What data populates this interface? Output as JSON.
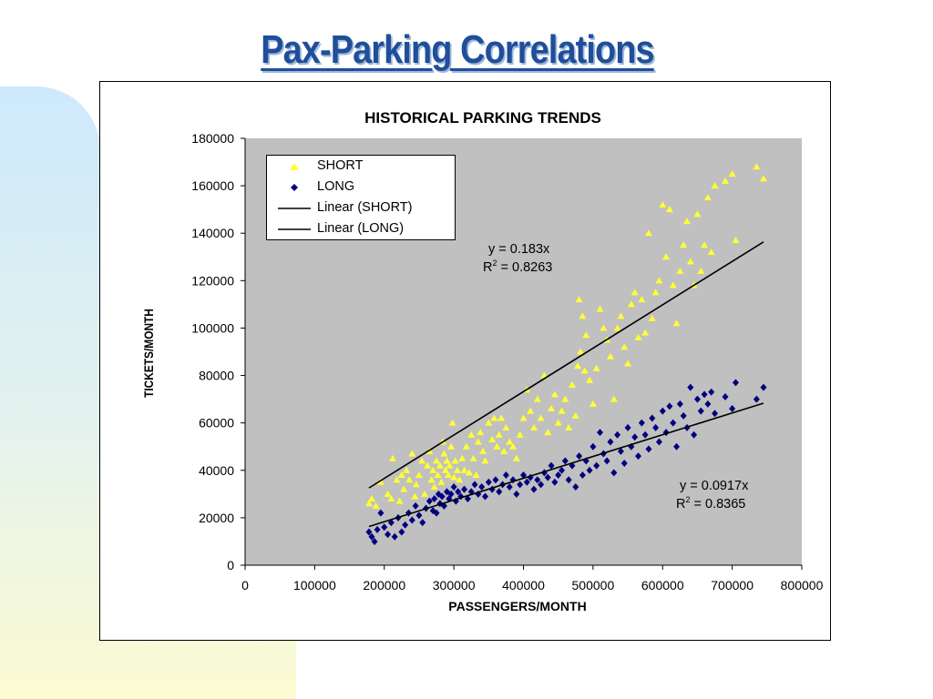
{
  "slide": {
    "title": "Pax-Parking Correlations"
  },
  "colors": {
    "title": "#1f4e9a",
    "plot_area": "#c0c0c0",
    "short": "#ffff33",
    "long": "#000080",
    "trend": "#000000",
    "deco_blue": "#cce8fb",
    "deco_yellow": "#fbfbd4"
  },
  "chart_data": {
    "type": "scatter",
    "title": "HISTORICAL PARKING TRENDS",
    "xlabel": "PASSENGERS/MONTH",
    "ylabel": "TICKETS/MONTH",
    "xlim": [
      0,
      800000
    ],
    "ylim": [
      0,
      180000
    ],
    "x_ticks": [
      "0",
      "100000",
      "200000",
      "300000",
      "400000",
      "500000",
      "600000",
      "700000",
      "800000"
    ],
    "y_ticks": [
      "0",
      "20000",
      "40000",
      "60000",
      "80000",
      "100000",
      "120000",
      "140000",
      "160000",
      "180000"
    ],
    "grid": false,
    "legend_position": "top-left",
    "legend": [
      "SHORT",
      "LONG",
      "Linear (SHORT)",
      "Linear (LONG)"
    ],
    "series": [
      {
        "name": "SHORT",
        "marker": "triangle",
        "x": [
          178000,
          182000,
          188000,
          195000,
          205000,
          210000,
          212000,
          218000,
          222000,
          225000,
          228000,
          232000,
          236000,
          240000,
          244000,
          246000,
          250000,
          254000,
          258000,
          262000,
          265000,
          268000,
          270000,
          272000,
          275000,
          277000,
          280000,
          282000,
          284000,
          286000,
          288000,
          290000,
          292000,
          294000,
          296000,
          298000,
          300000,
          302000,
          305000,
          308000,
          312000,
          315000,
          318000,
          322000,
          325000,
          328000,
          332000,
          335000,
          338000,
          342000,
          345000,
          350000,
          355000,
          358000,
          362000,
          365000,
          368000,
          372000,
          375000,
          380000,
          385000,
          390000,
          395000,
          400000,
          405000,
          410000,
          415000,
          420000,
          425000,
          430000,
          435000,
          440000,
          445000,
          450000,
          455000,
          460000,
          465000,
          470000,
          475000,
          478000,
          480000,
          482000,
          485000,
          488000,
          490000,
          495000,
          500000,
          505000,
          510000,
          515000,
          520000,
          525000,
          530000,
          535000,
          540000,
          545000,
          550000,
          555000,
          560000,
          565000,
          570000,
          575000,
          580000,
          585000,
          590000,
          595000,
          600000,
          605000,
          610000,
          615000,
          620000,
          625000,
          630000,
          635000,
          640000,
          645000,
          650000,
          655000,
          660000,
          665000,
          670000,
          675000,
          690000,
          700000,
          705000,
          735000,
          745000
        ],
        "y": [
          26000,
          28000,
          25000,
          35000,
          30000,
          28000,
          45000,
          36000,
          27000,
          38000,
          32000,
          40000,
          36000,
          47000,
          29000,
          34000,
          38000,
          44000,
          30000,
          42000,
          48000,
          36000,
          40000,
          33000,
          44000,
          38000,
          42000,
          35000,
          52000,
          47000,
          40000,
          44000,
          38000,
          42000,
          50000,
          60000,
          37000,
          44000,
          40000,
          36000,
          45000,
          40000,
          50000,
          39000,
          55000,
          45000,
          38000,
          52000,
          56000,
          48000,
          44000,
          60000,
          53000,
          62000,
          50000,
          55000,
          62000,
          48000,
          58000,
          52000,
          50000,
          45000,
          55000,
          62000,
          74000,
          65000,
          58000,
          70000,
          62000,
          80000,
          56000,
          66000,
          72000,
          60000,
          65000,
          70000,
          58000,
          76000,
          63000,
          84000,
          112000,
          90000,
          105000,
          82000,
          97000,
          78000,
          68000,
          83000,
          108000,
          100000,
          95000,
          88000,
          70000,
          100000,
          105000,
          92000,
          85000,
          110000,
          115000,
          96000,
          112000,
          98000,
          140000,
          104000,
          115000,
          120000,
          152000,
          130000,
          150000,
          118000,
          102000,
          124000,
          135000,
          145000,
          128000,
          118000,
          148000,
          124000,
          135000,
          155000,
          132000,
          160000,
          162000,
          165000,
          137000,
          168000,
          163000
        ]
      },
      {
        "name": "LONG",
        "marker": "diamond",
        "x": [
          178000,
          182000,
          186000,
          190000,
          195000,
          200000,
          205000,
          210000,
          215000,
          220000,
          225000,
          230000,
          235000,
          240000,
          245000,
          250000,
          255000,
          260000,
          265000,
          270000,
          272000,
          275000,
          278000,
          280000,
          283000,
          286000,
          290000,
          293000,
          296000,
          300000,
          303000,
          306000,
          310000,
          315000,
          320000,
          325000,
          330000,
          335000,
          340000,
          345000,
          350000,
          355000,
          360000,
          365000,
          370000,
          375000,
          380000,
          385000,
          390000,
          395000,
          400000,
          405000,
          410000,
          415000,
          420000,
          425000,
          430000,
          435000,
          440000,
          445000,
          450000,
          455000,
          460000,
          465000,
          470000,
          475000,
          480000,
          485000,
          490000,
          495000,
          500000,
          505000,
          510000,
          515000,
          520000,
          525000,
          530000,
          535000,
          540000,
          545000,
          550000,
          555000,
          560000,
          565000,
          570000,
          575000,
          580000,
          585000,
          590000,
          595000,
          600000,
          605000,
          610000,
          615000,
          620000,
          625000,
          630000,
          635000,
          640000,
          645000,
          650000,
          655000,
          660000,
          665000,
          670000,
          675000,
          690000,
          700000,
          705000,
          735000,
          745000
        ],
        "y": [
          14000,
          12000,
          10000,
          15000,
          22000,
          16000,
          13000,
          18000,
          12000,
          20000,
          14000,
          17000,
          22000,
          19000,
          25000,
          21000,
          18000,
          24000,
          27000,
          23000,
          28000,
          22000,
          30000,
          26000,
          29000,
          25000,
          31000,
          28000,
          30000,
          33000,
          27000,
          31000,
          29000,
          32000,
          28000,
          31000,
          34000,
          30000,
          33000,
          29000,
          35000,
          32000,
          36000,
          31000,
          34000,
          38000,
          33000,
          36000,
          30000,
          34000,
          38000,
          35000,
          37000,
          32000,
          36000,
          34000,
          39000,
          37000,
          42000,
          35000,
          38000,
          40000,
          44000,
          36000,
          42000,
          33000,
          46000,
          38000,
          44000,
          40000,
          50000,
          42000,
          56000,
          47000,
          44000,
          52000,
          39000,
          55000,
          48000,
          43000,
          58000,
          50000,
          54000,
          46000,
          60000,
          55000,
          49000,
          62000,
          58000,
          52000,
          65000,
          56000,
          67000,
          60000,
          50000,
          68000,
          63000,
          58000,
          75000,
          55000,
          70000,
          65000,
          72000,
          68000,
          73000,
          64000,
          71000,
          66000,
          77000,
          70000,
          75000
        ]
      },
      {
        "name": "Linear (SHORT)",
        "type": "line",
        "x": [
          178000,
          745000
        ],
        "y": [
          32574,
          136335
        ],
        "equation": "y = 0.183x",
        "r2_label": "R",
        "r2_sup": "2",
        "r2_value": " = 0.8263"
      },
      {
        "name": "Linear (LONG)",
        "type": "line",
        "x": [
          178000,
          745000
        ],
        "y": [
          16323,
          68317
        ],
        "equation": "y = 0.0917x",
        "r2_label": "R",
        "r2_sup": "2",
        "r2_value": " = 0.8365"
      }
    ]
  }
}
